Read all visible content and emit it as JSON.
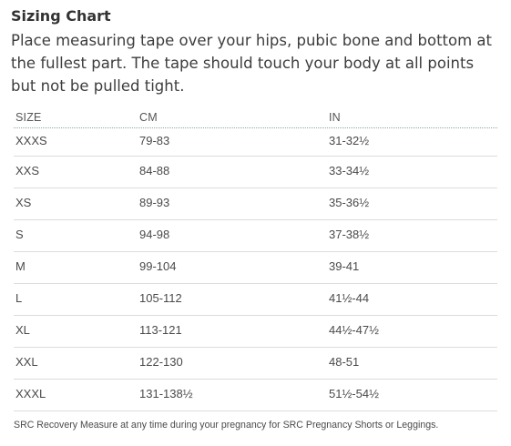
{
  "title": "Sizing Chart",
  "intro": "Place measuring tape over your hips, pubic bone and bottom at the fullest part. The tape should touch your body at all points but not be pulled tight.",
  "table": {
    "headers": [
      "SIZE",
      "CM",
      "IN"
    ],
    "rows": [
      [
        "XXXS",
        "79-83",
        "31-32½"
      ],
      [
        "XXS",
        "84-88",
        "33-34½"
      ],
      [
        "XS",
        "89-93",
        "35-36½"
      ],
      [
        "S",
        "94-98",
        "37-38½"
      ],
      [
        "M",
        "99-104",
        "39-41"
      ],
      [
        "L",
        "105-112",
        "41½-44"
      ],
      [
        "XL",
        "113-121",
        "44½-47½"
      ],
      [
        "XXL",
        "122-130",
        "48-51"
      ],
      [
        "XXXL",
        "131-138½",
        "51½-54½"
      ]
    ]
  },
  "footer": "SRC Recovery Measure at any time during your pregnancy for SRC Pregnancy Shorts or Leggings."
}
